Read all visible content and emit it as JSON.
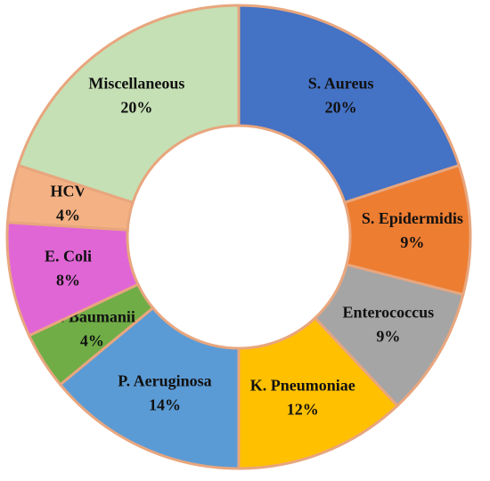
{
  "chart_data": {
    "type": "donut",
    "categories": [
      "S. Aureus",
      "S. Epidermidis",
      "Enterococcus",
      "K. Pneumoniae",
      "P. Aeruginosa",
      "A. Baumanii",
      "E. Coli",
      "HCV",
      "Miscellaneous"
    ],
    "values": [
      20,
      9,
      9,
      12,
      14,
      4,
      8,
      4,
      20
    ],
    "value_labels": [
      "20%",
      "9%",
      "9%",
      "12%",
      "14%",
      "4%",
      "8%",
      "4%",
      "20%"
    ],
    "colors": [
      "#4472c4",
      "#ed7d31",
      "#a5a5a5",
      "#ffc000",
      "#5b9bd5",
      "#70ad47",
      "#e066d6",
      "#f4b183",
      "#c5e0b4"
    ]
  }
}
